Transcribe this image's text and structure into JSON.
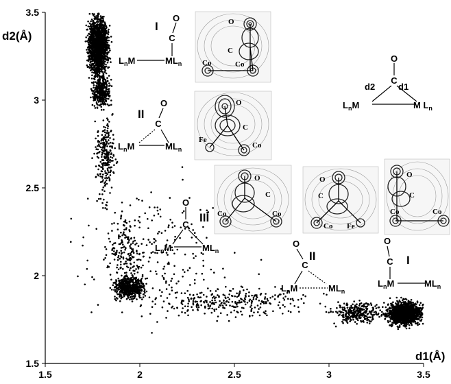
{
  "chart_data": {
    "type": "scatter",
    "title": "",
    "xlabel": "d1(Å)",
    "ylabel": "d2(Å)",
    "xlim": [
      1.5,
      3.5
    ],
    "ylim": [
      1.5,
      3.5
    ],
    "xticks": [
      "1.5",
      "2",
      "2.5",
      "3",
      "3.5"
    ],
    "yticks": [
      "1.5",
      "2",
      "2.5",
      "3",
      "3.5"
    ],
    "grid": false,
    "legend": "none",
    "marker_color": "#000000",
    "series": [
      {
        "clusters": [
          {
            "x": [
              1.72,
              1.84
            ],
            "y": [
              3.12,
              3.5
            ],
            "weight": 0.3
          },
          {
            "x": [
              1.74,
              1.85
            ],
            "y": [
              2.95,
              3.15
            ],
            "weight": 0.07
          },
          {
            "x": [
              1.76,
              1.88
            ],
            "y": [
              2.4,
              2.95
            ],
            "weight": 0.05
          },
          {
            "x": [
              1.82,
              2.02
            ],
            "y": [
              1.85,
              2.4
            ],
            "weight": 0.04
          },
          {
            "x": [
              1.85,
              2.05
            ],
            "y": [
              1.86,
              2.0
            ],
            "weight": 0.1
          },
          {
            "x": [
              2.0,
              3.0
            ],
            "y": [
              1.75,
              1.95
            ],
            "weight": 0.06
          },
          {
            "x": [
              3.0,
              3.3
            ],
            "y": [
              1.72,
              1.86
            ],
            "weight": 0.06
          },
          {
            "x": [
              3.3,
              3.5
            ],
            "y": [
              1.71,
              1.86
            ],
            "weight": 0.28
          },
          {
            "x": [
              1.6,
              2.6
            ],
            "y": [
              1.7,
              2.6
            ],
            "weight": 0.04
          }
        ]
      }
    ]
  },
  "diagrams": {
    "reference": {
      "o": "O",
      "c": "C",
      "d2": "d2",
      "d1": "d1",
      "left": "LnM",
      "right": "M Ln"
    },
    "structures": [
      {
        "roman": "I",
        "o": "O",
        "c": "C",
        "left": "LnM",
        "right": "MLn"
      },
      {
        "roman": "II",
        "o": "O",
        "c": "C",
        "left": "LnM",
        "right": "MLn"
      },
      {
        "roman": "III",
        "o": "O",
        "c": "C",
        "left": "LnM",
        "right": "MLn"
      },
      {
        "roman": "II",
        "o": "O",
        "c": "C",
        "left": "LnM",
        "right": "MLn"
      },
      {
        "roman": "I",
        "o": "O",
        "c": "C",
        "left": "LnM",
        "right": "MLn"
      }
    ],
    "density_maps": [
      {
        "o": "O",
        "c": "C",
        "m1": "Co",
        "m2": "Co"
      },
      {
        "o": "O",
        "c": "C",
        "m1": "Fe",
        "m2": "Co"
      },
      {
        "o": "O",
        "c": "C",
        "m1": "Co",
        "m2": "Co"
      },
      {
        "o": "O",
        "c": "C",
        "m1": "Co",
        "m2": "Fe"
      },
      {
        "o": "O",
        "c": "C",
        "m1": "Co",
        "m2": "Co"
      }
    ]
  }
}
